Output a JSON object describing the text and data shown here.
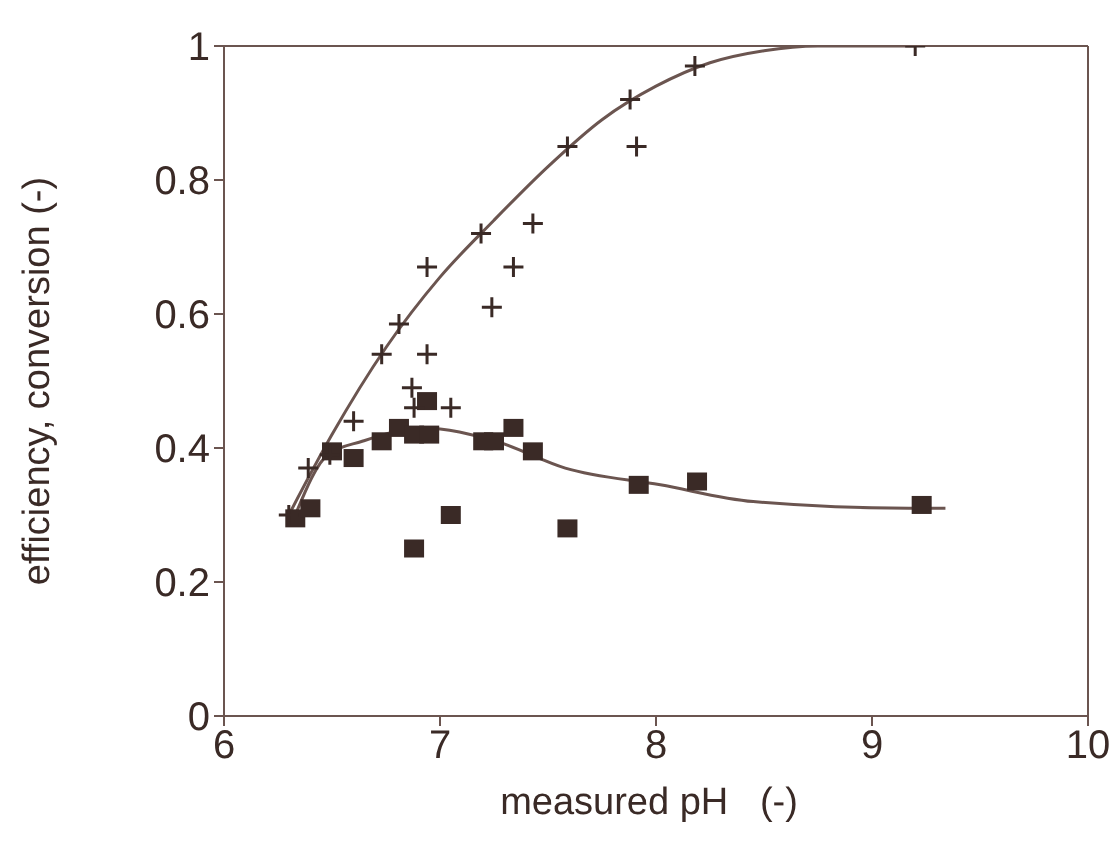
{
  "chart_data": {
    "type": "scatter",
    "xlabel": "measured pH   (-)",
    "ylabel": "efficiency, conversion (-)",
    "xlim": [
      6,
      10
    ],
    "xticks": [
      6,
      7,
      8,
      9,
      10
    ],
    "ylim": [
      0,
      1
    ],
    "yticks": [
      0,
      0.2,
      0.4,
      0.6,
      0.8,
      1
    ],
    "series": [
      {
        "marker": "square",
        "color": "#3a2a26",
        "x": [
          6.33,
          6.4,
          6.5,
          6.6,
          6.73,
          6.81,
          6.88,
          6.95,
          6.94,
          6.88,
          7.05,
          7.2,
          7.25,
          7.34,
          7.43,
          7.59,
          7.89,
          7.92,
          8.19,
          9.23
        ],
        "values": [
          0.295,
          0.31,
          0.395,
          0.385,
          0.41,
          0.43,
          0.42,
          0.42,
          0.47,
          0.25,
          0.3,
          0.41,
          0.41,
          0.43,
          0.395,
          0.28,
          null,
          0.345,
          0.35,
          0.315
        ]
      },
      {
        "marker": "cross",
        "color": "#3a2a26",
        "x": [
          6.3,
          6.39,
          6.49,
          6.6,
          6.73,
          6.81,
          6.87,
          6.88,
          6.94,
          6.94,
          7.05,
          7.19,
          7.24,
          7.34,
          7.43,
          7.59,
          7.88,
          7.91,
          8.18,
          9.2
        ],
        "values": [
          0.3,
          0.37,
          0.39,
          0.44,
          0.54,
          0.585,
          0.49,
          0.46,
          0.67,
          0.54,
          0.46,
          0.72,
          0.61,
          0.67,
          0.735,
          0.85,
          0.92,
          0.85,
          0.97,
          1.0
        ]
      },
      {
        "type": "line",
        "marker": "none",
        "line_style": "solid",
        "color": "#6b5550",
        "x": [
          6.3,
          6.5,
          6.75,
          7.0,
          7.25,
          7.5,
          7.75,
          8.0,
          8.25,
          8.5,
          8.75,
          9.2
        ],
        "values": [
          0.3,
          0.42,
          0.55,
          0.655,
          0.74,
          0.82,
          0.89,
          0.94,
          0.975,
          0.993,
          1.0,
          1.0
        ]
      },
      {
        "type": "line",
        "marker": "none",
        "line_style": "solid",
        "color": "#6b5550",
        "x": [
          6.33,
          6.48,
          6.64,
          6.92,
          7.26,
          7.58,
          8.02,
          8.45,
          9.17,
          9.34
        ],
        "values": [
          0.3,
          0.39,
          0.41,
          0.43,
          0.41,
          0.37,
          0.345,
          0.32,
          0.31,
          0.31
        ]
      }
    ]
  }
}
